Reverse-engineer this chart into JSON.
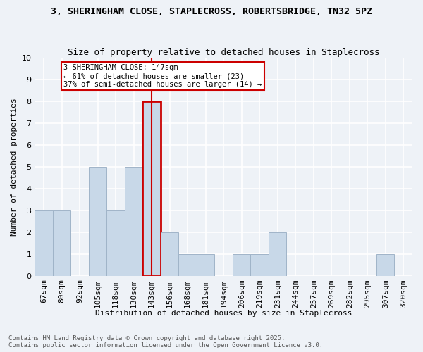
{
  "title1": "3, SHERINGHAM CLOSE, STAPLECROSS, ROBERTSBRIDGE, TN32 5PZ",
  "title2": "Size of property relative to detached houses in Staplecross",
  "xlabel": "Distribution of detached houses by size in Staplecross",
  "ylabel": "Number of detached properties",
  "bins": [
    "67sqm",
    "80sqm",
    "92sqm",
    "105sqm",
    "118sqm",
    "130sqm",
    "143sqm",
    "156sqm",
    "168sqm",
    "181sqm",
    "194sqm",
    "206sqm",
    "219sqm",
    "231sqm",
    "244sqm",
    "257sqm",
    "269sqm",
    "282sqm",
    "295sqm",
    "307sqm",
    "320sqm"
  ],
  "counts": [
    3,
    3,
    0,
    5,
    3,
    5,
    8,
    2,
    1,
    1,
    0,
    1,
    1,
    2,
    0,
    0,
    0,
    0,
    0,
    1,
    0
  ],
  "bar_color": "#c8d8e8",
  "bar_edgecolor": "#a0b4c8",
  "highlight_index": 6,
  "highlight_color": "#cc0000",
  "annotation_text": "3 SHERINGHAM CLOSE: 147sqm\n← 61% of detached houses are smaller (23)\n37% of semi-detached houses are larger (14) →",
  "annotation_box_color": "#ffffff",
  "annotation_box_edgecolor": "#cc0000",
  "ylim": [
    0,
    10
  ],
  "yticks": [
    0,
    1,
    2,
    3,
    4,
    5,
    6,
    7,
    8,
    9,
    10
  ],
  "footer_text": "Contains HM Land Registry data © Crown copyright and database right 2025.\nContains public sector information licensed under the Open Government Licence v3.0.",
  "background_color": "#eef2f7",
  "grid_color": "#ffffff",
  "title1_fontsize": 9.5,
  "title2_fontsize": 9,
  "xlabel_fontsize": 8,
  "ylabel_fontsize": 8,
  "footer_fontsize": 6.5,
  "ann_fontsize": 7.5
}
